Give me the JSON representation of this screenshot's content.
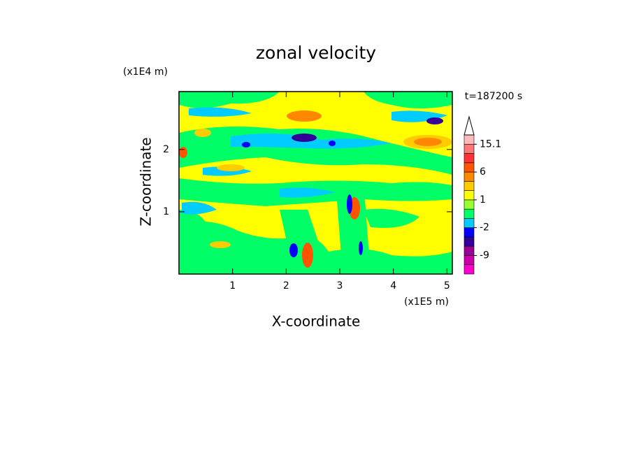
{
  "chart_data": {
    "type": "contour",
    "title": "zonal velocity",
    "x_label": "X-coordinate",
    "y_label": "Z-coordinate",
    "x_unit": "(x1E5 m)",
    "y_unit": "(x1E4 m)",
    "annotation": "t=187200 s",
    "xlim": [
      0,
      5.1
    ],
    "ylim": [
      0,
      2.93
    ],
    "xticks": [
      1,
      2,
      3,
      4,
      5
    ],
    "yticks": [
      1,
      2
    ],
    "colorbar": {
      "levels": [
        -15,
        -12,
        -9,
        -6,
        -4,
        -2,
        -1,
        0,
        1,
        2,
        3,
        6,
        9,
        12,
        15.1,
        18
      ],
      "colors": [
        "#ff00cc",
        "#cc00aa",
        "#990099",
        "#330099",
        "#0000ff",
        "#00ccff",
        "#00ff66",
        "#99ff33",
        "#ffff00",
        "#ffcc00",
        "#ff8800",
        "#ff5500",
        "#ff3333",
        "#ff7777",
        "#ffbbbb"
      ],
      "extend_color": "#ffffff",
      "ticks": [
        15.1,
        6,
        1,
        -2,
        -9
      ]
    }
  }
}
